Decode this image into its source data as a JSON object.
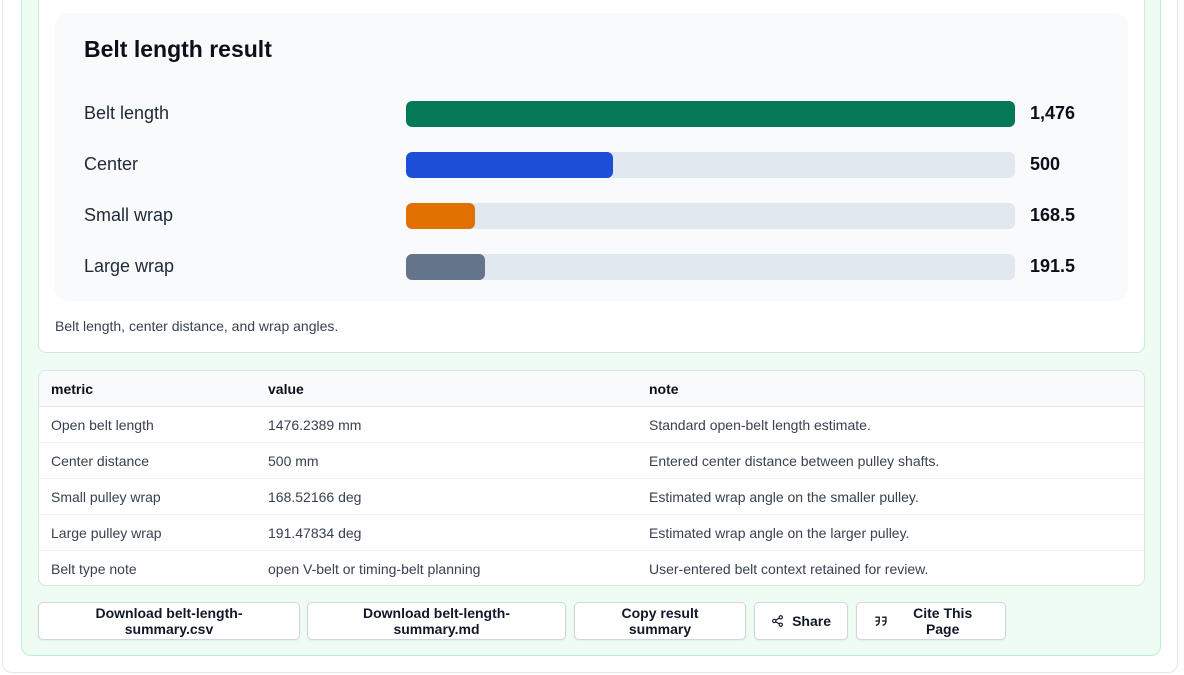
{
  "chart": {
    "title": "Belt length result",
    "caption": "Belt length, center distance, and wrap angles.",
    "bars": [
      {
        "label": "Belt length",
        "display": "1,476",
        "fill_fraction": 1.0,
        "color": "#047857"
      },
      {
        "label": "Center",
        "display": "500",
        "fill_fraction": 0.34,
        "color": "#1d4ed8"
      },
      {
        "label": "Small wrap",
        "display": "168.5",
        "fill_fraction": 0.114,
        "color": "#e07000"
      },
      {
        "label": "Large wrap",
        "display": "191.5",
        "fill_fraction": 0.13,
        "color": "#64748b"
      }
    ]
  },
  "chart_data": {
    "type": "bar",
    "categories": [
      "Belt length",
      "Center",
      "Small wrap",
      "Large wrap"
    ],
    "values": [
      1476,
      500,
      168.5,
      191.5
    ],
    "title": "Belt length result",
    "xlabel": "",
    "ylabel": ""
  },
  "table": {
    "headers": [
      "metric",
      "value",
      "note"
    ],
    "rows": [
      [
        "Open belt length",
        "1476.2389 mm",
        "Standard open-belt length estimate."
      ],
      [
        "Center distance",
        "500 mm",
        "Entered center distance between pulley shafts."
      ],
      [
        "Small pulley wrap",
        "168.52166 deg",
        "Estimated wrap angle on the smaller pulley."
      ],
      [
        "Large pulley wrap",
        "191.47834 deg",
        "Estimated wrap angle on the larger pulley."
      ],
      [
        "Belt type note",
        "open V-belt or timing-belt planning",
        "User-entered belt context retained for review."
      ]
    ]
  },
  "actions": {
    "download_csv": "Download belt-length-summary.csv",
    "download_md": "Download belt-length-summary.md",
    "copy": "Copy result summary",
    "share": "Share",
    "cite": "Cite This Page",
    "share_icon": "share-icon",
    "cite_icon": "quote-icon"
  }
}
